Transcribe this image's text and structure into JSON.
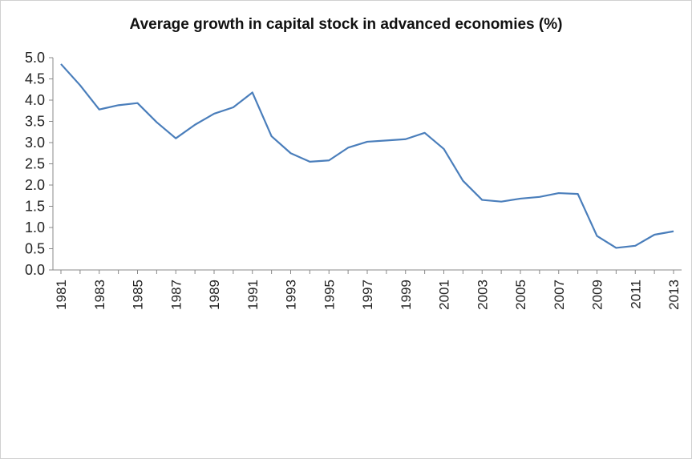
{
  "chart_data": {
    "type": "line",
    "title": "Average growth in capital stock in advanced economies (%)",
    "xlabel": "",
    "ylabel": "",
    "ylim": [
      0,
      5
    ],
    "yticks": [
      "0.0",
      "0.5",
      "1.0",
      "1.5",
      "2.0",
      "2.5",
      "3.0",
      "3.5",
      "4.0",
      "4.5",
      "5.0"
    ],
    "xtick_labels": [
      "1981",
      "1983",
      "1985",
      "1987",
      "1989",
      "1991",
      "1993",
      "1995",
      "1997",
      "1999",
      "2001",
      "2003",
      "2005",
      "2007",
      "2009",
      "2011",
      "2013"
    ],
    "x": [
      1981,
      1982,
      1983,
      1984,
      1985,
      1986,
      1987,
      1988,
      1989,
      1990,
      1991,
      1992,
      1993,
      1994,
      1995,
      1996,
      1997,
      1998,
      1999,
      2000,
      2001,
      2002,
      2003,
      2004,
      2005,
      2006,
      2007,
      2008,
      2009,
      2010,
      2011,
      2012,
      2013
    ],
    "series": [
      {
        "values": [
          4.85,
          4.35,
          3.78,
          3.88,
          3.93,
          3.48,
          3.1,
          3.42,
          3.68,
          3.83,
          4.18,
          3.15,
          2.75,
          2.55,
          2.58,
          2.88,
          3.02,
          3.05,
          3.08,
          3.23,
          2.85,
          2.1,
          1.65,
          1.61,
          1.68,
          1.72,
          1.81,
          1.79,
          0.8,
          0.52,
          0.57,
          0.83,
          0.91
        ]
      }
    ],
    "line_color": "#4a7ebb",
    "grid": false,
    "legend": "none"
  }
}
